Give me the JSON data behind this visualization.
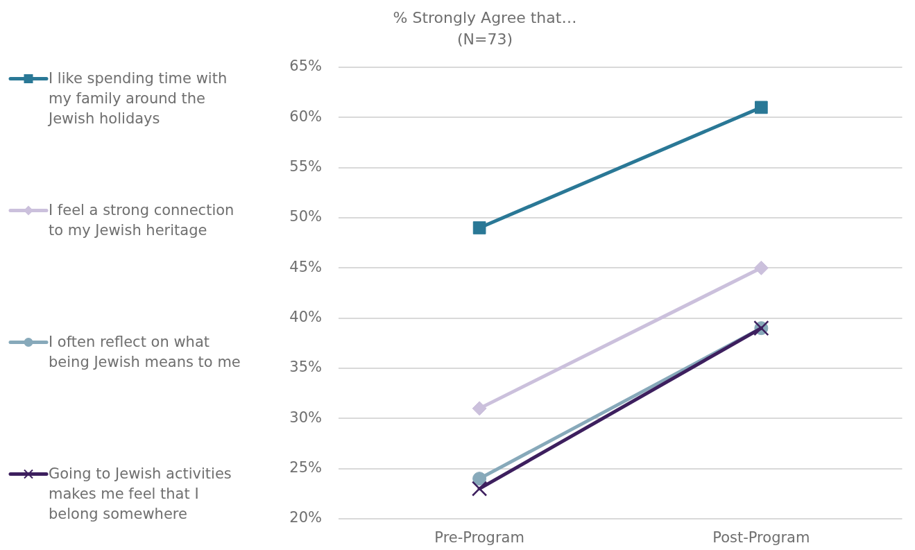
{
  "chart_data": {
    "type": "line",
    "title": "% Strongly Agree that…",
    "subtitle": "(N=73)",
    "categories": [
      "Pre-Program",
      "Post-Program"
    ],
    "series": [
      {
        "name": "I like spending time with my family around the Jewish holidays",
        "color": "#2a7896",
        "marker": "square",
        "values": [
          49,
          61
        ]
      },
      {
        "name": "I feel a strong connection to my Jewish heritage",
        "color": "#cbc0dc",
        "marker": "diamond",
        "values": [
          31,
          45
        ]
      },
      {
        "name": "I often reflect on what being Jewish means to me",
        "color": "#87a9ba",
        "marker": "circle",
        "values": [
          24,
          39
        ]
      },
      {
        "name": "Going to Jewish activities makes me feel that I belong somewhere",
        "color": "#3d1f5e",
        "marker": "cross",
        "values": [
          23,
          39
        ]
      }
    ],
    "ylim": [
      20,
      65
    ],
    "yticks": [
      {
        "value": 20,
        "label": "20%"
      },
      {
        "value": 25,
        "label": "25%"
      },
      {
        "value": 30,
        "label": "30%"
      },
      {
        "value": 35,
        "label": "35%"
      },
      {
        "value": 40,
        "label": "40%"
      },
      {
        "value": 45,
        "label": "45%"
      },
      {
        "value": 50,
        "label": "50%"
      },
      {
        "value": 55,
        "label": "55%"
      },
      {
        "value": 60,
        "label": "60%"
      },
      {
        "value": 65,
        "label": "65%"
      }
    ],
    "grid": "y",
    "legend": "left",
    "line_style": "solid"
  }
}
